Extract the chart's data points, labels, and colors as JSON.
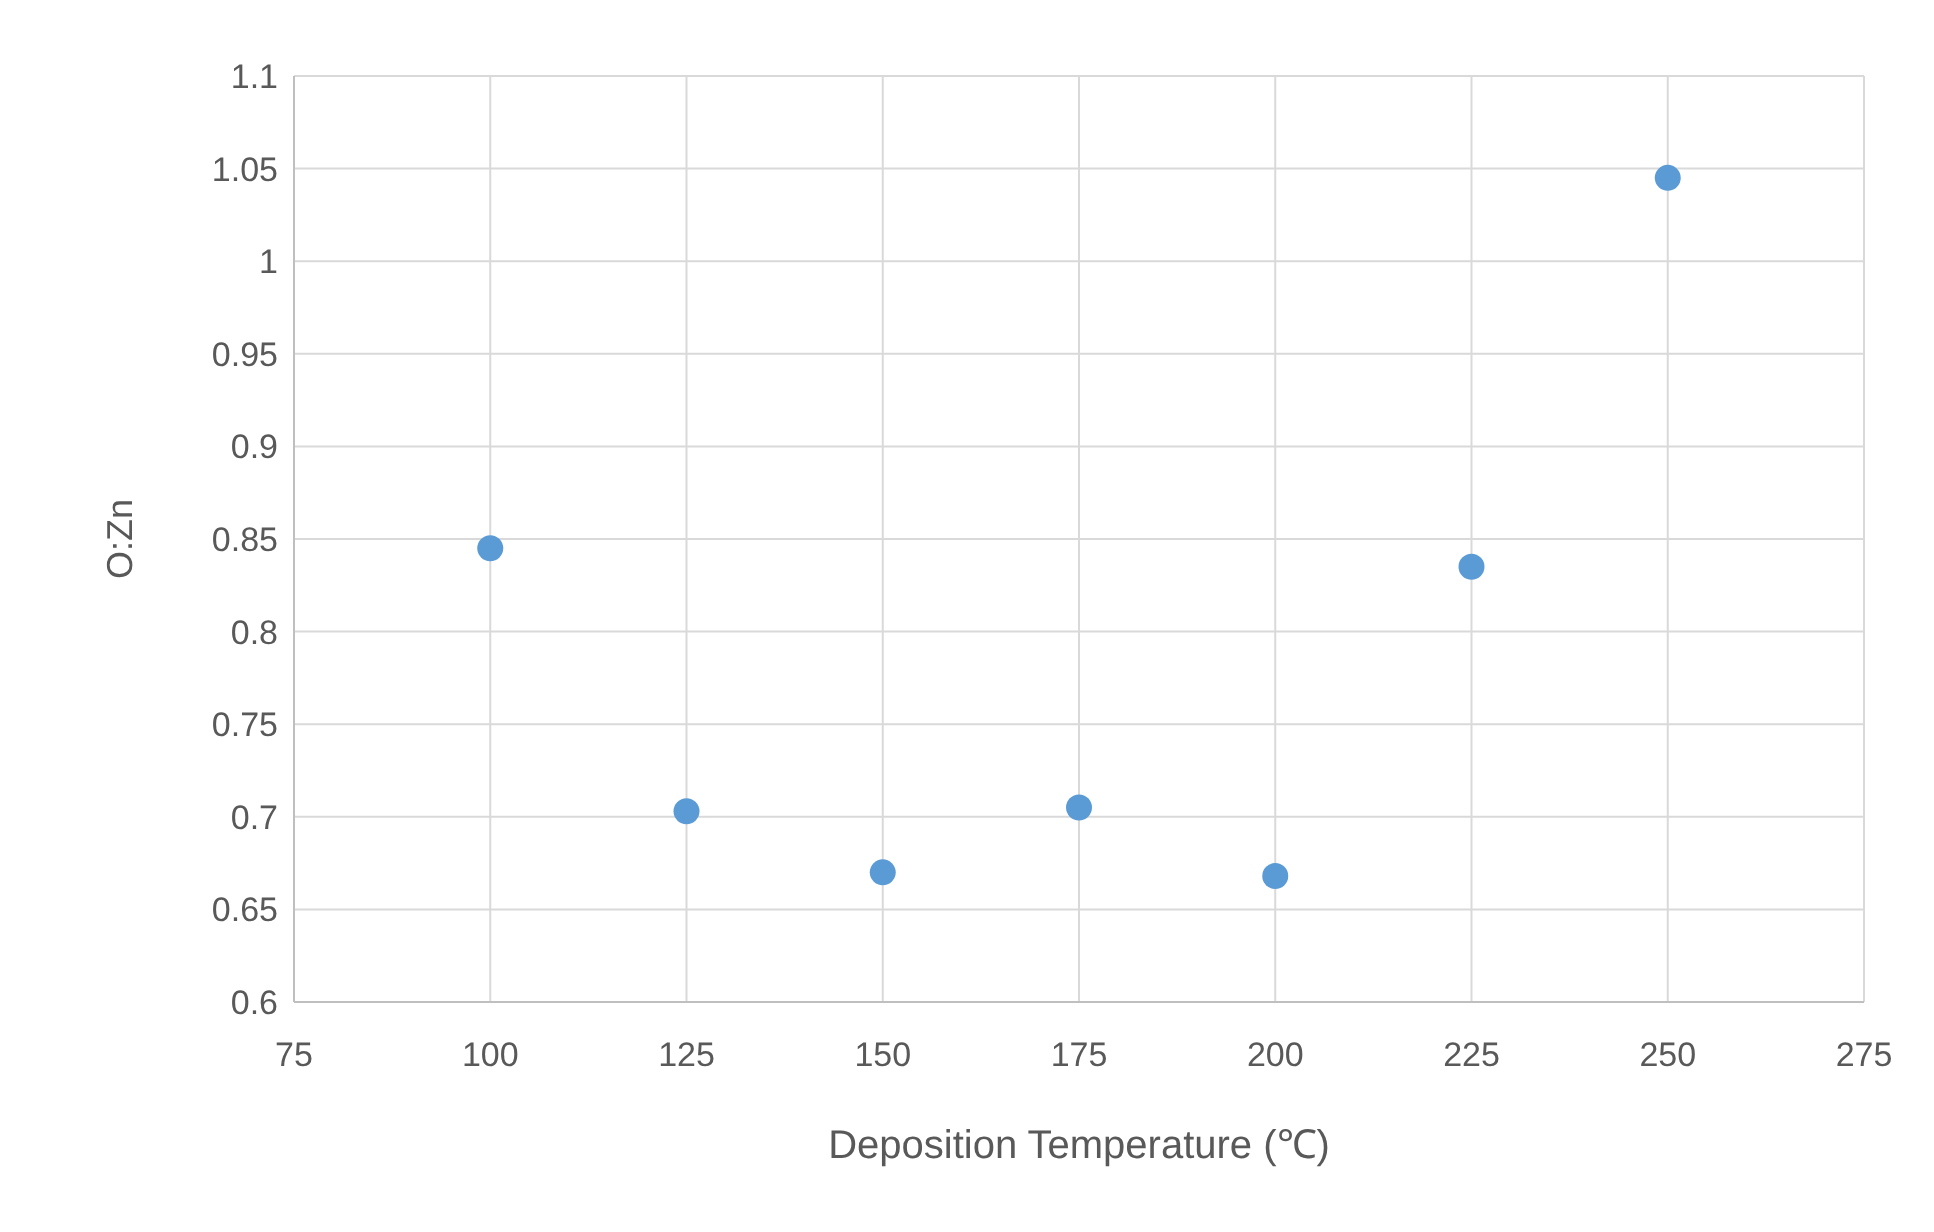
{
  "chart_data": {
    "type": "scatter",
    "xlabel": "Deposition Temperature (℃)",
    "ylabel": "O:Zn",
    "x": [
      100,
      125,
      150,
      175,
      200,
      225,
      250
    ],
    "values": [
      0.845,
      0.703,
      0.67,
      0.705,
      0.668,
      0.835,
      1.045
    ],
    "color": "#5b9bd5",
    "marker": "circle",
    "grid": true,
    "xlim": [
      75,
      275
    ],
    "xticks": [
      75,
      100,
      125,
      150,
      175,
      200,
      225,
      250,
      275
    ],
    "ylim": [
      0.6,
      1.1
    ],
    "yticks": [
      {
        "value": 0.6,
        "label": "0.6"
      },
      {
        "value": 0.65,
        "label": "0.65"
      },
      {
        "value": 0.7,
        "label": "0.7"
      },
      {
        "value": 0.75,
        "label": "0.75"
      },
      {
        "value": 0.8,
        "label": "0.8"
      },
      {
        "value": 0.85,
        "label": "0.85"
      },
      {
        "value": 0.9,
        "label": "0.9"
      },
      {
        "value": 0.95,
        "label": "0.95"
      },
      {
        "value": 1,
        "label": "1"
      },
      {
        "value": 1.05,
        "label": "1.05"
      },
      {
        "value": 1.1,
        "label": "1.1"
      }
    ]
  }
}
